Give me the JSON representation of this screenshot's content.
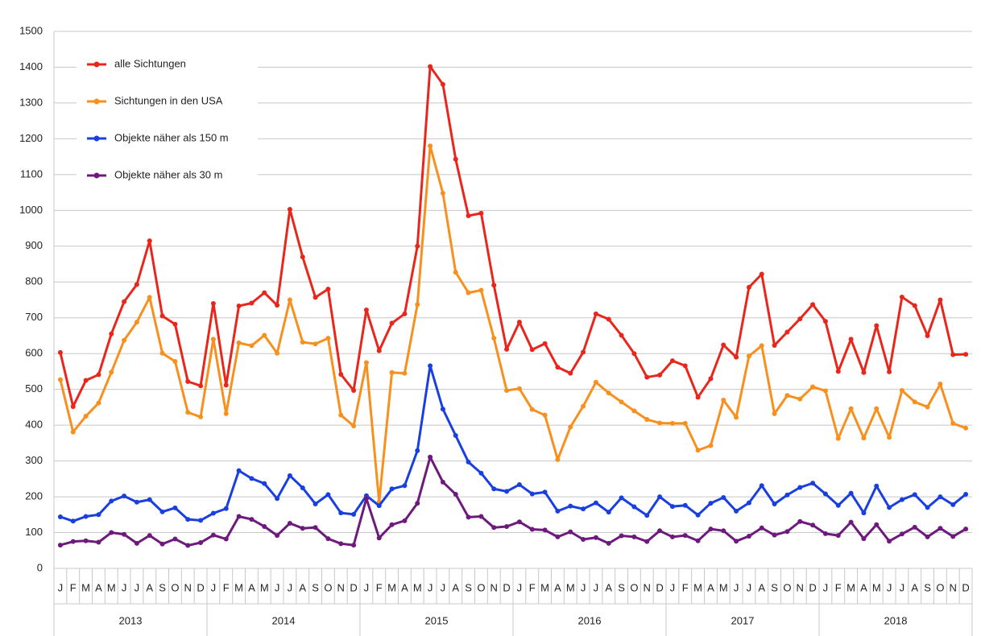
{
  "chart_data": {
    "type": "line",
    "categories": [
      "J",
      "F",
      "M",
      "A",
      "M",
      "J",
      "J",
      "A",
      "S",
      "O",
      "N",
      "D",
      "J",
      "F",
      "M",
      "A",
      "M",
      "J",
      "J",
      "A",
      "S",
      "O",
      "N",
      "D",
      "J",
      "F",
      "M",
      "A",
      "M",
      "J",
      "J",
      "A",
      "S",
      "O",
      "N",
      "D",
      "J",
      "F",
      "M",
      "A",
      "M",
      "J",
      "J",
      "A",
      "S",
      "O",
      "N",
      "D",
      "J",
      "F",
      "M",
      "A",
      "M",
      "J",
      "J",
      "A",
      "S",
      "O",
      "N",
      "D",
      "J",
      "F",
      "M",
      "A",
      "M",
      "J",
      "J",
      "A",
      "S",
      "O",
      "N",
      "D"
    ],
    "years": [
      "2013",
      "2014",
      "2015",
      "2016",
      "2017",
      "2018"
    ],
    "ylim": [
      0,
      1500
    ],
    "yticks": [
      0,
      100,
      200,
      300,
      400,
      500,
      600,
      700,
      800,
      900,
      1000,
      1100,
      1200,
      1300,
      1400,
      1500
    ],
    "grid": true,
    "legend": "upper left",
    "series": [
      {
        "name": "alle Sichtungen",
        "color": "#e8261c",
        "values": [
          603,
          452,
          525,
          541,
          655,
          745,
          793,
          915,
          705,
          682,
          522,
          510,
          740,
          512,
          733,
          741,
          770,
          735,
          1003,
          870,
          757,
          780,
          542,
          497,
          722,
          608,
          685,
          711,
          900,
          1402,
          1352,
          1143,
          985,
          992,
          791,
          612,
          688,
          611,
          628,
          562,
          545,
          604,
          711,
          696,
          651,
          600,
          534,
          540,
          580,
          566,
          478,
          530,
          624,
          590,
          785,
          822,
          623,
          660,
          697,
          737,
          690,
          550,
          640,
          547,
          678,
          549,
          758,
          734,
          650,
          750,
          597,
          598
        ]
      },
      {
        "name": "Sichtungen in den USA",
        "color": "#f7901e",
        "values": [
          527,
          381,
          425,
          462,
          548,
          637,
          688,
          757,
          601,
          578,
          436,
          423,
          640,
          432,
          630,
          622,
          651,
          601,
          750,
          632,
          627,
          643,
          428,
          398,
          575,
          185,
          547,
          545,
          737,
          1180,
          1048,
          827,
          770,
          777,
          643,
          497,
          502,
          444,
          428,
          304,
          395,
          453,
          520,
          490,
          465,
          440,
          416,
          406,
          405,
          405,
          330,
          343,
          470,
          422,
          593,
          622,
          432,
          483,
          473,
          507,
          496,
          363,
          446,
          364,
          446,
          366,
          497,
          465,
          451,
          515,
          405,
          392
        ]
      },
      {
        "name": "Objekte näher als 150 m",
        "color": "#1a3fe0",
        "values": [
          144,
          132,
          145,
          150,
          188,
          202,
          185,
          192,
          158,
          169,
          137,
          134,
          154,
          167,
          273,
          251,
          237,
          195,
          259,
          225,
          180,
          206,
          155,
          151,
          203,
          175,
          222,
          231,
          329,
          566,
          445,
          371,
          297,
          266,
          222,
          215,
          234,
          208,
          213,
          160,
          174,
          166,
          183,
          157,
          197,
          172,
          148,
          200,
          173,
          176,
          149,
          182,
          198,
          160,
          183,
          231,
          180,
          205,
          226,
          238,
          208,
          176,
          210,
          155,
          230,
          170,
          192,
          206,
          170,
          200,
          178,
          207
        ]
      },
      {
        "name": "Objekte näher als 30 m",
        "color": "#6e1a7d",
        "values": [
          65,
          75,
          77,
          73,
          100,
          95,
          70,
          92,
          68,
          82,
          64,
          72,
          93,
          82,
          145,
          137,
          117,
          92,
          126,
          112,
          114,
          83,
          69,
          65,
          195,
          85,
          122,
          133,
          182,
          311,
          241,
          207,
          143,
          145,
          114,
          117,
          130,
          109,
          107,
          88,
          102,
          81,
          86,
          70,
          91,
          88,
          75,
          105,
          88,
          92,
          77,
          110,
          105,
          76,
          90,
          113,
          93,
          103,
          131,
          121,
          97,
          92,
          129,
          83,
          122,
          76,
          96,
          115,
          88,
          112,
          89,
          110
        ]
      }
    ]
  }
}
